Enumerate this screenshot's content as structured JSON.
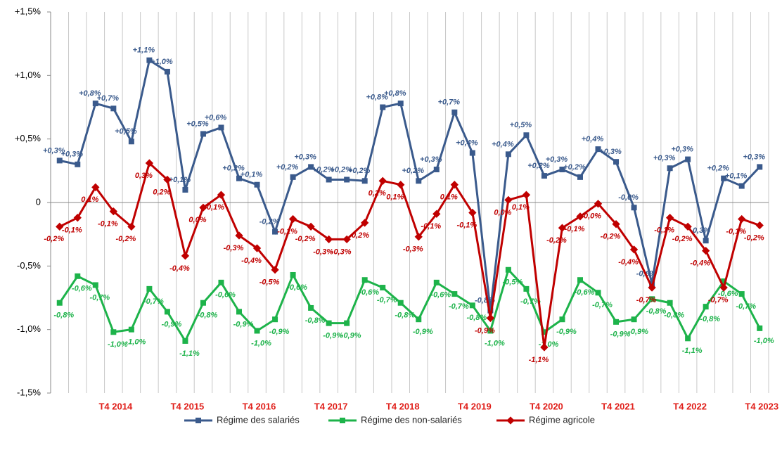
{
  "chart_data": {
    "type": "line",
    "categories": [
      null,
      null,
      null,
      "T4 2014",
      null,
      null,
      null,
      "T4 2015",
      null,
      null,
      null,
      "T4 2016",
      null,
      null,
      null,
      "T4 2017",
      null,
      null,
      null,
      "T4 2018",
      null,
      null,
      null,
      "T4 2019",
      null,
      null,
      null,
      "T4 2020",
      null,
      null,
      null,
      "T4 2021",
      null,
      null,
      null,
      "T4 2022",
      null,
      null,
      null,
      "T4 2023"
    ],
    "ylim": [
      -1.5,
      1.5
    ],
    "yticks": [
      {
        "value": 1.5,
        "label": "+1,5%"
      },
      {
        "value": 1.0,
        "label": "+1,0%"
      },
      {
        "value": 0.5,
        "label": "+0,5%"
      },
      0,
      {
        "value": -0.5,
        "label": "-0,5%"
      },
      {
        "value": -1.0,
        "label": "-1,0%"
      },
      {
        "value": -1.5,
        "label": "-1,5%"
      }
    ],
    "grid": true,
    "series": [
      {
        "name": "Régime des salariés",
        "color": "#3a5a8c",
        "values": [
          0.33,
          0.3,
          0.78,
          0.74,
          0.48,
          1.12,
          1.03,
          0.1,
          0.54,
          0.59,
          0.19,
          0.14,
          -0.23,
          0.2,
          0.28,
          0.18,
          0.18,
          0.17,
          0.75,
          0.78,
          0.17,
          0.26,
          0.71,
          0.39,
          -0.85,
          0.38,
          0.53,
          0.21,
          0.26,
          0.2,
          0.42,
          0.32,
          -0.04,
          -0.64,
          0.27,
          0.34,
          -0.3,
          0.19,
          0.13,
          0.28
        ],
        "value_labels": [
          "+0,3%",
          "+0,3%",
          "+0,8%",
          "+0,7%",
          "+0,5%",
          "+1,1%",
          "+1,0%",
          "+0,1%",
          "+0,5%",
          "+0,6%",
          "+0,2%",
          "+0,1%",
          "-0,2%",
          "+0,2%",
          "+0,3%",
          "+0,2%",
          "+0,2%",
          "+0,2%",
          "+0,8%",
          "+0,8%",
          "+0,2%",
          "+0,3%",
          "+0,7%",
          "+0,4%",
          "-0,8%",
          "+0,4%",
          "+0,5%",
          "+0,2%",
          "+0,3%",
          "+0,2%",
          "+0,4%",
          "+0,3%",
          "-0,0%",
          "-0,6%",
          "+0,3%",
          "+0,3%",
          "-0,3%",
          "+0,2%",
          "+0,1%",
          "+0,3%"
        ]
      },
      {
        "name": "Régime des non-salariés",
        "color": "#1db34a",
        "values": [
          -0.79,
          -0.58,
          -0.65,
          -1.02,
          -1.0,
          -0.68,
          -0.86,
          -1.09,
          -0.79,
          -0.63,
          -0.86,
          -1.01,
          -0.92,
          -0.57,
          -0.83,
          -0.95,
          -0.95,
          -0.61,
          -0.67,
          -0.79,
          -0.92,
          -0.63,
          -0.72,
          -0.81,
          -1.01,
          -0.53,
          -0.68,
          -1.02,
          -0.92,
          -0.61,
          -0.71,
          -0.94,
          -0.92,
          -0.76,
          -0.79,
          -1.07,
          -0.82,
          -0.62,
          -0.72,
          -0.99
        ],
        "value_labels": [
          "-0,8%",
          "-0,6%",
          "-0,7%",
          "-1,0%",
          "-1,0%",
          "-0,7%",
          "-0,9%",
          "-1,1%",
          "-0,8%",
          "-0,6%",
          "-0,9%",
          "-1,0%",
          "-0,9%",
          "-0,6%",
          "-0,8%",
          "-0,9%",
          "-0,9%",
          "-0,6%",
          "-0,7%",
          "-0,8%",
          "-0,9%",
          "-0,6%",
          "-0,7%",
          "-0,8%",
          "-1,0%",
          "-0,5%",
          "-0,7%",
          "-1,0%",
          "-0,9%",
          "-0,6%",
          "-0,7%",
          "-0,9%",
          "-0,9%",
          "-0,8%",
          "-0,8%",
          "-1,1%",
          "-0,8%",
          "-0,6%",
          "-0,7%",
          "-1,0%"
        ]
      },
      {
        "name": "Régime agricole",
        "color": "#c00000",
        "values": [
          -0.19,
          -0.12,
          0.12,
          -0.07,
          -0.19,
          0.31,
          0.18,
          -0.42,
          -0.04,
          0.06,
          -0.26,
          -0.36,
          -0.53,
          -0.13,
          -0.19,
          -0.29,
          -0.29,
          -0.16,
          0.17,
          0.14,
          -0.27,
          -0.09,
          0.14,
          -0.08,
          -0.91,
          0.02,
          0.06,
          -1.14,
          -0.2,
          -0.11,
          -0.01,
          -0.17,
          -0.37,
          -0.67,
          -0.12,
          -0.19,
          -0.38,
          -0.67,
          -0.13,
          -0.18
        ],
        "value_labels": [
          "-0,2%",
          "-0,1%",
          "0,1%",
          "-0,1%",
          "-0,2%",
          "0,3%",
          "0,2%",
          "-0,4%",
          "0,0%",
          "0,1%",
          "-0,3%",
          "-0,4%",
          "-0,5%",
          "-0,1%",
          "-0,2%",
          "-0,3%",
          "-0,3%",
          "-0,2%",
          "0,2%",
          "0,1%",
          "-0,3%",
          "-0,1%",
          "0,1%",
          "-0,1%",
          "-0,9%",
          "0,0%",
          "0,1%",
          "-1,1%",
          "-0,2%",
          "-0,1%",
          "0,0%",
          "-0,2%",
          "-0,4%",
          "-0,7%",
          "-0,1%",
          "-0,2%",
          "-0,4%",
          "-0,7%",
          "-0,1%",
          "-0,2%"
        ]
      }
    ]
  }
}
